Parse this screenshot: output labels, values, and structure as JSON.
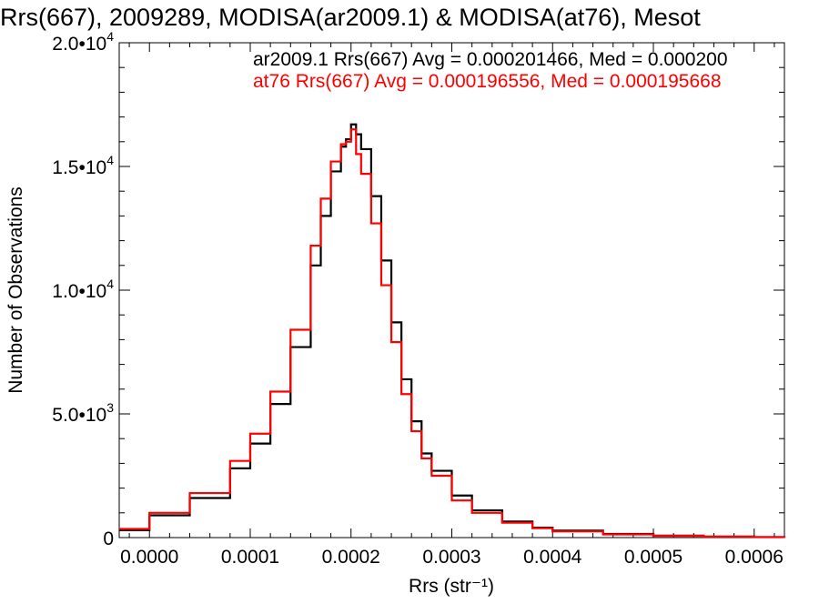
{
  "chart_data": {
    "type": "line",
    "title": "Rrs(667), 2009289, MODISA(ar2009.1) & MODISA(at76), Mesot",
    "xlabel": "Rrs (str⁻¹)",
    "ylabel": "Number of Observations",
    "xlim": [
      -3e-05,
      0.00063
    ],
    "ylim": [
      0,
      20000
    ],
    "x_ticks": [
      0.0,
      0.0001,
      0.0002,
      0.0003,
      0.0004,
      0.0005,
      0.0006
    ],
    "x_tick_labels": [
      "0.0000",
      "0.0001",
      "0.0002",
      "0.0003",
      "0.0004",
      "0.0005",
      "0.0006"
    ],
    "y_ticks": [
      0,
      5000,
      10000,
      15000,
      20000
    ],
    "y_tick_labels": [
      {
        "mantissa": "0",
        "exponent": ""
      },
      {
        "mantissa": "5.0•10",
        "exponent": "3"
      },
      {
        "mantissa": "1.0•10",
        "exponent": "4"
      },
      {
        "mantissa": "1.5•10",
        "exponent": "4"
      },
      {
        "mantissa": "2.0•10",
        "exponent": "4"
      }
    ],
    "grid": false,
    "series": [
      {
        "name": "ar2009.1",
        "color": "#000000",
        "legend": "ar2009.1 Rrs(667) Avg = 0.000201466, Med = 0.000200",
        "x": [
          -3e-05,
          0.0,
          4e-05,
          8e-05,
          0.0001,
          0.00012,
          0.00014,
          0.00016,
          0.00017,
          0.00018,
          0.00019,
          0.000195,
          0.0002,
          0.000205,
          0.00021,
          0.00022,
          0.00023,
          0.00024,
          0.00025,
          0.00026,
          0.00027,
          0.00028,
          0.0003,
          0.00032,
          0.00035,
          0.00038,
          0.0004,
          0.00045,
          0.0005,
          0.00055,
          0.0006,
          0.00063
        ],
        "y": [
          300,
          900,
          1600,
          2800,
          3800,
          5400,
          7700,
          11000,
          13000,
          14800,
          15800,
          16100,
          16700,
          16300,
          15700,
          13800,
          11200,
          8700,
          6400,
          4700,
          3400,
          2700,
          1700,
          1100,
          650,
          400,
          280,
          150,
          80,
          40,
          20,
          10
        ]
      },
      {
        "name": "at76",
        "color": "#ff0000",
        "legend": "at76 Rrs(667) Avg = 0.000196556, Med = 0.000195668",
        "x": [
          -3e-05,
          0.0,
          4e-05,
          8e-05,
          0.0001,
          0.00012,
          0.00014,
          0.00016,
          0.00017,
          0.00018,
          0.00019,
          0.000195,
          0.0002,
          0.000205,
          0.00021,
          0.00022,
          0.00023,
          0.00024,
          0.00025,
          0.00026,
          0.00027,
          0.00028,
          0.0003,
          0.00032,
          0.00035,
          0.00038,
          0.0004,
          0.00045,
          0.0005,
          0.00055,
          0.0006,
          0.00063
        ],
        "y": [
          350,
          1000,
          1800,
          3100,
          4200,
          5900,
          8400,
          11800,
          13700,
          15200,
          15900,
          16000,
          16500,
          15500,
          14700,
          12700,
          10200,
          7900,
          5800,
          4300,
          3200,
          2500,
          1500,
          1000,
          600,
          380,
          250,
          130,
          70,
          35,
          18,
          8
        ]
      }
    ]
  }
}
